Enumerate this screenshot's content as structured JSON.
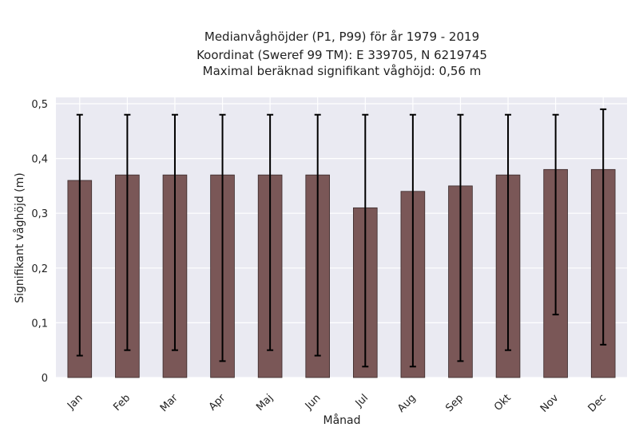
{
  "chart_data": {
    "type": "bar",
    "title": {
      "line1": "Medianvåghöjder (P1, P99) för år 1979 - 2019",
      "line2": "Koordinat (Sweref 99 TM): E 339705, N 6219745",
      "line3": "Maximal beräknad signifikant våghöjd: 0,56 m"
    },
    "xlabel": "Månad",
    "ylabel": "Signifikant våghöjd (m)",
    "ylim": [
      0,
      0.5
    ],
    "yticks": [
      "0",
      "0,1",
      "0,2",
      "0,3",
      "0,4",
      "0,5"
    ],
    "grid": true,
    "categories": [
      "Jan",
      "Feb",
      "Mar",
      "Apr",
      "Maj",
      "Jun",
      "Jul",
      "Aug",
      "Sep",
      "Okt",
      "Nov",
      "Dec"
    ],
    "values": [
      0.36,
      0.37,
      0.37,
      0.37,
      0.37,
      0.37,
      0.31,
      0.34,
      0.35,
      0.37,
      0.38,
      0.38
    ],
    "p1": [
      0.04,
      0.05,
      0.05,
      0.03,
      0.05,
      0.04,
      0.02,
      0.02,
      0.03,
      0.05,
      0.115,
      0.06
    ],
    "p99": [
      0.48,
      0.48,
      0.48,
      0.48,
      0.48,
      0.48,
      0.48,
      0.48,
      0.48,
      0.48,
      0.48,
      0.49
    ],
    "colors": {
      "bar": "#7a5757",
      "bar_edge": "#3a2a2a",
      "errorbar": "#000000",
      "plot_background": "#eaeaf2",
      "grid": "#ffffff"
    }
  }
}
